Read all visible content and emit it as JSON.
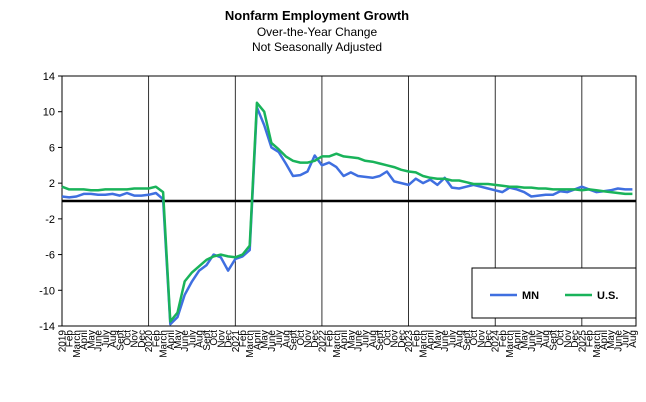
{
  "chart_data": {
    "type": "line",
    "title": "Nonfarm Employment Growth",
    "subtitle": [
      "Over-the-Year Change",
      "Not Seasonally Adjusted"
    ],
    "categories": [
      "2019",
      "Feb",
      "March",
      "April",
      "May",
      "June",
      "July",
      "Aug",
      "Sept",
      "Oct",
      "Nov",
      "Dec",
      "2020",
      "Feb",
      "March",
      "April",
      "May",
      "June",
      "July",
      "Aug",
      "Sept",
      "Oct",
      "Nov",
      "Dec",
      "2021",
      "Feb",
      "March",
      "April",
      "May",
      "June",
      "July",
      "Aug",
      "Sept",
      "Oct",
      "Nov",
      "Dec",
      "2022",
      "Feb",
      "March",
      "April",
      "May",
      "June",
      "July",
      "Aug",
      "Sept",
      "Oct",
      "Nov",
      "Dec",
      "2023",
      "Feb",
      "March",
      "April",
      "May",
      "June",
      "July",
      "Aug",
      "Sept",
      "Oct",
      "Nov",
      "Dec",
      "2024",
      "Feb",
      "March",
      "April",
      "May",
      "June",
      "July",
      "Aug",
      "Sept",
      "Oct",
      "Nov",
      "Dec",
      "2025",
      "Feb",
      "March",
      "April",
      "May",
      "June",
      "July",
      "Aug"
    ],
    "series": [
      {
        "name": "MN",
        "color": "#3f6fe0",
        "values": [
          0.5,
          0.4,
          0.5,
          0.8,
          0.8,
          0.7,
          0.7,
          0.8,
          0.6,
          0.9,
          0.6,
          0.6,
          0.7,
          0.9,
          0.2,
          -13.8,
          -13.0,
          -10.5,
          -9,
          -7.8,
          -7.2,
          -6,
          -6.3,
          -7.8,
          -6.5,
          -6.2,
          -5.5,
          10.5,
          8.5,
          6.0,
          5.5,
          4.2,
          2.8,
          2.9,
          3.3,
          5.1,
          4.0,
          4.3,
          3.8,
          2.8,
          3.2,
          2.8,
          2.7,
          2.6,
          2.8,
          3.3,
          2.2,
          2.0,
          1.8,
          2.5,
          2.0,
          2.4,
          1.8,
          2.6,
          1.5,
          1.4,
          1.6,
          1.8,
          1.6,
          1.4,
          1.2,
          1.0,
          1.5,
          1.3,
          1.0,
          0.5,
          0.6,
          0.7,
          0.7,
          1.1,
          1.0,
          1.3,
          1.6,
          1.3,
          1.0,
          1.1,
          1.2,
          1.4,
          1.3,
          1.3
        ]
      },
      {
        "name": "U.S.",
        "color": "#19b35a",
        "values": [
          1.6,
          1.3,
          1.3,
          1.3,
          1.2,
          1.2,
          1.3,
          1.3,
          1.3,
          1.3,
          1.4,
          1.4,
          1.4,
          1.6,
          1.0,
          -13.5,
          -12.5,
          -9,
          -8,
          -7.3,
          -6.6,
          -6.2,
          -6.0,
          -6.2,
          -6.3,
          -6.0,
          -5.0,
          11.0,
          10.0,
          6.5,
          5.8,
          5.0,
          4.5,
          4.3,
          4.3,
          4.5,
          5.0,
          5.0,
          5.3,
          5.0,
          4.9,
          4.8,
          4.5,
          4.4,
          4.2,
          4.0,
          3.8,
          3.5,
          3.3,
          3.2,
          2.8,
          2.6,
          2.5,
          2.5,
          2.3,
          2.3,
          2.1,
          1.9,
          1.9,
          1.9,
          1.8,
          1.7,
          1.6,
          1.6,
          1.5,
          1.5,
          1.4,
          1.4,
          1.3,
          1.3,
          1.3,
          1.3,
          1.2,
          1.3,
          1.2,
          1.1,
          1.0,
          0.9,
          0.8,
          0.8
        ]
      }
    ],
    "ylim": [
      -14,
      14
    ],
    "yticks": [
      14,
      10,
      6,
      2,
      -2,
      -6,
      -10,
      -14
    ],
    "legend": "lower right"
  }
}
